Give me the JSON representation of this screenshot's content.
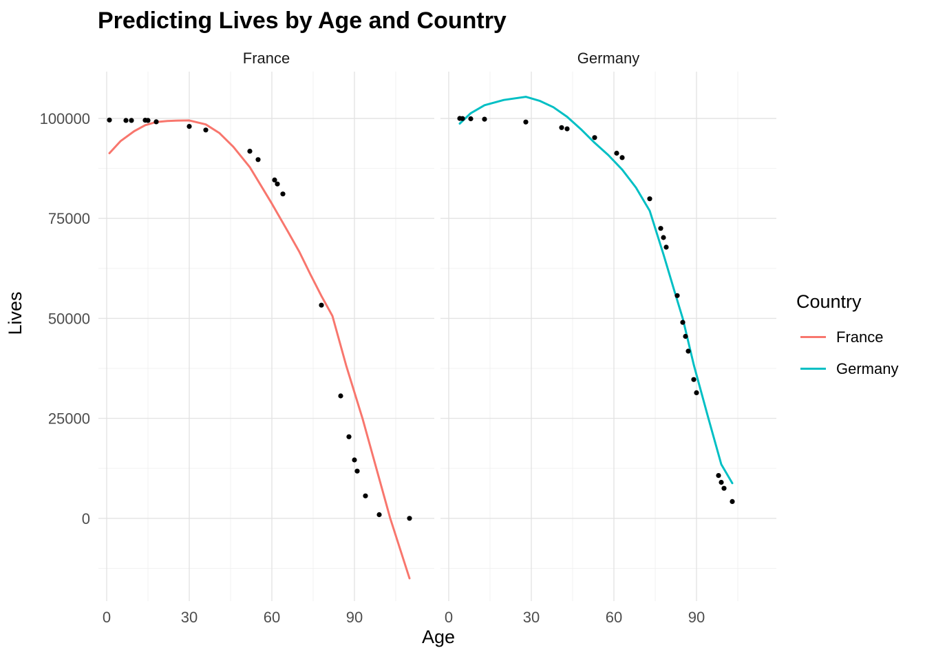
{
  "title": "Predicting Lives by Age and Country",
  "axes": {
    "x_label": "Age",
    "y_label": "Lives"
  },
  "legend": {
    "title": "Country",
    "items": [
      {
        "label": "France",
        "color": "#F8766D"
      },
      {
        "label": "Germany",
        "color": "#00BFC4"
      }
    ]
  },
  "chart_data": {
    "type": "scatter",
    "title": "Predicting Lives by Age and Country",
    "xlabel": "Age",
    "ylabel": "Lives",
    "legend_title": "Country",
    "legend_position": "right",
    "grid": true,
    "x_domain": [
      -3,
      119
    ],
    "y_domain": [
      -20700,
      111700
    ],
    "x_major_ticks": [
      0,
      30,
      60,
      90
    ],
    "x_minor_ticks": [
      15,
      45,
      75,
      105
    ],
    "y_major_ticks": [
      0,
      25000,
      50000,
      75000,
      100000
    ],
    "y_minor_ticks": [
      -12500,
      12500,
      37500,
      62500,
      87500
    ],
    "point_color": "#000000",
    "grid_major_color": "#E3E3E3",
    "grid_minor_color": "#F0F0F0",
    "tick_label_color": "#4D4D4D",
    "facets": [
      {
        "label": "France",
        "line_color": "#F8766D",
        "points": [
          [
            1,
            99600
          ],
          [
            7,
            99500
          ],
          [
            9,
            99500
          ],
          [
            14,
            99550
          ],
          [
            15,
            99500
          ],
          [
            18,
            99150
          ],
          [
            30,
            98000
          ],
          [
            36,
            97100
          ],
          [
            52,
            91800
          ],
          [
            55,
            89700
          ],
          [
            61,
            84600
          ],
          [
            62,
            83600
          ],
          [
            64,
            81100
          ],
          [
            78,
            53300
          ],
          [
            85,
            30600
          ],
          [
            88,
            20400
          ],
          [
            90,
            14600
          ],
          [
            91,
            11800
          ],
          [
            94,
            5600
          ],
          [
            99,
            900
          ],
          [
            110,
            0
          ]
        ],
        "trend_line": [
          [
            1,
            91300
          ],
          [
            5,
            94300
          ],
          [
            10,
            96800
          ],
          [
            14,
            98300
          ],
          [
            18,
            99100
          ],
          [
            22,
            99350
          ],
          [
            26,
            99450
          ],
          [
            30,
            99500
          ],
          [
            36,
            98500
          ],
          [
            41,
            96300
          ],
          [
            46,
            92900
          ],
          [
            52,
            87800
          ],
          [
            60,
            78700
          ],
          [
            66,
            71500
          ],
          [
            70,
            66600
          ],
          [
            74,
            61000
          ],
          [
            78,
            55600
          ],
          [
            82,
            50600
          ],
          [
            87,
            38200
          ],
          [
            93,
            24800
          ],
          [
            98,
            12400
          ],
          [
            103,
            0
          ],
          [
            110,
            -15000
          ]
        ]
      },
      {
        "label": "Germany",
        "line_color": "#00BFC4",
        "points": [
          [
            4,
            100000
          ],
          [
            5,
            99950
          ],
          [
            8,
            99900
          ],
          [
            13,
            99800
          ],
          [
            28,
            99100
          ],
          [
            41,
            97700
          ],
          [
            43,
            97400
          ],
          [
            53,
            95200
          ],
          [
            61,
            91300
          ],
          [
            63,
            90200
          ],
          [
            73,
            79900
          ],
          [
            77,
            72500
          ],
          [
            78,
            70200
          ],
          [
            79,
            67800
          ],
          [
            83,
            55700
          ],
          [
            85,
            49000
          ],
          [
            86,
            45500
          ],
          [
            87,
            41800
          ],
          [
            89,
            34700
          ],
          [
            90,
            31400
          ],
          [
            98,
            10700
          ],
          [
            99,
            9000
          ],
          [
            100,
            7500
          ],
          [
            103,
            4200
          ]
        ],
        "trend_line": [
          [
            4,
            98700
          ],
          [
            8,
            101300
          ],
          [
            13,
            103300
          ],
          [
            20,
            104600
          ],
          [
            28,
            105400
          ],
          [
            33,
            104400
          ],
          [
            38,
            102800
          ],
          [
            43,
            100400
          ],
          [
            48,
            97300
          ],
          [
            53,
            93900
          ],
          [
            58,
            90800
          ],
          [
            63,
            87200
          ],
          [
            68,
            82700
          ],
          [
            73,
            76900
          ],
          [
            78,
            66000
          ],
          [
            82,
            56800
          ],
          [
            85,
            50000
          ],
          [
            89,
            38400
          ],
          [
            94,
            25800
          ],
          [
            99,
            13500
          ],
          [
            103,
            8800
          ]
        ]
      }
    ]
  }
}
